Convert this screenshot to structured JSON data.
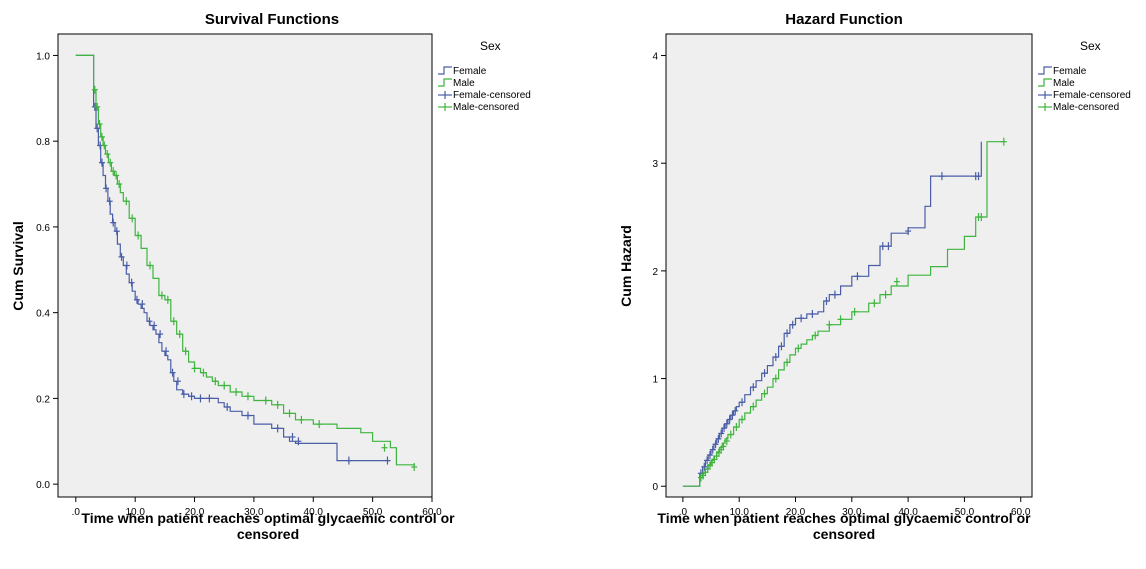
{
  "chart_data": [
    {
      "type": "line",
      "title": "Survival Functions",
      "xlabel": [
        "Time when patient reaches optimal glycaemic control or",
        "censored"
      ],
      "ylabel": "Cum Survival",
      "xlim": [
        -3,
        60
      ],
      "ylim": [
        -0.03,
        1.05
      ],
      "x_ticks": [
        0,
        10,
        20,
        30,
        40,
        50,
        60
      ],
      "x_tick_labels": [
        ".0",
        "10.0",
        "20.0",
        "30.0",
        "40.0",
        "50.0",
        "60.0"
      ],
      "y_ticks": [
        0,
        0.2,
        0.4,
        0.6,
        0.8,
        1.0
      ],
      "y_tick_labels": [
        "0.0",
        "0.2",
        "0.4",
        "0.6",
        "0.8",
        "1.0"
      ],
      "legend": {
        "title": "Sex",
        "placement": "right",
        "entries": [
          {
            "label": "Female",
            "kind": "line",
            "color": "#4a5ea8"
          },
          {
            "label": "Male",
            "kind": "line",
            "color": "#3fb53f"
          },
          {
            "label": "Female-censored",
            "kind": "censor",
            "color": "#4a5ea8"
          },
          {
            "label": "Male-censored",
            "kind": "censor",
            "color": "#3fb53f"
          }
        ]
      },
      "background": "#efefef",
      "series": [
        {
          "name": "Female",
          "color": "#4a5ea8",
          "step": true,
          "x": [
            0,
            3,
            3.4,
            3.8,
            4.2,
            4.6,
            5,
            5.4,
            5.8,
            6.2,
            6.6,
            7,
            7.5,
            8,
            8.5,
            9,
            9.5,
            10,
            10.5,
            11,
            11.5,
            12,
            12.5,
            13,
            13.5,
            14,
            14.5,
            15,
            15.5,
            16,
            16.5,
            17,
            18,
            19,
            20,
            22,
            24,
            25,
            26,
            28,
            30,
            33,
            35,
            36,
            37,
            40,
            44,
            53
          ],
          "y": [
            1.0,
            0.88,
            0.83,
            0.79,
            0.75,
            0.72,
            0.69,
            0.66,
            0.63,
            0.61,
            0.59,
            0.56,
            0.53,
            0.51,
            0.49,
            0.47,
            0.45,
            0.43,
            0.42,
            0.41,
            0.4,
            0.38,
            0.37,
            0.36,
            0.35,
            0.33,
            0.31,
            0.3,
            0.29,
            0.26,
            0.24,
            0.22,
            0.21,
            0.205,
            0.2,
            0.2,
            0.19,
            0.18,
            0.17,
            0.16,
            0.14,
            0.13,
            0.11,
            0.1,
            0.095,
            0.095,
            0.055,
            0.055
          ]
        },
        {
          "name": "Male",
          "color": "#3fb53f",
          "step": true,
          "x": [
            0,
            3,
            3.4,
            3.8,
            4.2,
            4.6,
            5,
            5.5,
            6,
            6.5,
            7,
            7.5,
            8,
            9,
            10,
            11,
            12,
            13,
            14,
            15,
            16,
            17,
            18,
            19,
            20,
            21,
            22,
            23,
            24,
            26,
            28,
            30,
            33,
            35,
            37,
            40,
            44,
            48,
            50,
            53,
            54,
            57
          ],
          "y": [
            1.0,
            0.92,
            0.88,
            0.84,
            0.81,
            0.79,
            0.77,
            0.75,
            0.73,
            0.72,
            0.7,
            0.68,
            0.66,
            0.62,
            0.58,
            0.55,
            0.51,
            0.48,
            0.44,
            0.43,
            0.38,
            0.35,
            0.31,
            0.285,
            0.27,
            0.26,
            0.25,
            0.24,
            0.23,
            0.215,
            0.205,
            0.195,
            0.185,
            0.165,
            0.15,
            0.14,
            0.13,
            0.12,
            0.1,
            0.085,
            0.045,
            0.04
          ]
        }
      ],
      "censored": [
        {
          "name": "Female-censored",
          "color": "#4a5ea8",
          "x": [
            3.2,
            3.6,
            4.1,
            4.4,
            5.1,
            5.7,
            6.3,
            6.9,
            7.7,
            8.6,
            9.4,
            10.3,
            11.2,
            12.4,
            13.2,
            14.2,
            15.2,
            16.3,
            17.2,
            18.2,
            19.5,
            21,
            22.5,
            25.5,
            29,
            34,
            36.5,
            37.5,
            46,
            52.5
          ],
          "y": [
            0.88,
            0.83,
            0.79,
            0.75,
            0.69,
            0.66,
            0.61,
            0.59,
            0.53,
            0.51,
            0.47,
            0.43,
            0.42,
            0.38,
            0.37,
            0.35,
            0.31,
            0.26,
            0.24,
            0.21,
            0.205,
            0.2,
            0.2,
            0.18,
            0.16,
            0.13,
            0.11,
            0.1,
            0.055,
            0.055
          ]
        },
        {
          "name": "Male-censored",
          "color": "#3fb53f",
          "x": [
            3.2,
            3.6,
            4.0,
            4.4,
            4.8,
            5.3,
            5.8,
            6.3,
            6.8,
            7.3,
            8.5,
            9.5,
            10.5,
            12.5,
            14.5,
            15.5,
            16.5,
            17.5,
            18.5,
            20,
            21.5,
            23.5,
            25,
            27,
            29,
            32,
            34,
            36,
            38,
            41,
            52,
            57
          ],
          "y": [
            0.92,
            0.88,
            0.84,
            0.81,
            0.79,
            0.77,
            0.75,
            0.73,
            0.72,
            0.7,
            0.66,
            0.62,
            0.58,
            0.51,
            0.44,
            0.43,
            0.38,
            0.35,
            0.31,
            0.27,
            0.26,
            0.24,
            0.23,
            0.215,
            0.205,
            0.195,
            0.185,
            0.165,
            0.15,
            0.14,
            0.085,
            0.04
          ]
        }
      ]
    },
    {
      "type": "line",
      "title": "Hazard Function",
      "xlabel": [
        "Time when patient reaches optimal glycaemic control or",
        "censored"
      ],
      "ylabel": "Cum Hazard",
      "xlim": [
        -3,
        62
      ],
      "ylim": [
        -0.1,
        4.2
      ],
      "x_ticks": [
        0,
        10,
        20,
        30,
        40,
        50,
        60
      ],
      "x_tick_labels": [
        ".0",
        "10.0",
        "20.0",
        "30.0",
        "40.0",
        "50.0",
        "60.0"
      ],
      "y_ticks": [
        0,
        1,
        2,
        3,
        4
      ],
      "y_tick_labels": [
        "0",
        "1",
        "2",
        "3",
        "4"
      ],
      "legend": {
        "title": "Sex",
        "placement": "right",
        "entries": [
          {
            "label": "Female",
            "kind": "line",
            "color": "#4a5ea8"
          },
          {
            "label": "Male",
            "kind": "line",
            "color": "#3fb53f"
          },
          {
            "label": "Female-censored",
            "kind": "censor",
            "color": "#4a5ea8"
          },
          {
            "label": "Male-censored",
            "kind": "censor",
            "color": "#3fb53f"
          }
        ]
      },
      "background": "#efefef",
      "series": [
        {
          "name": "Female",
          "color": "#4a5ea8",
          "step": true,
          "x": [
            0,
            3,
            3.5,
            4,
            4.5,
            5,
            5.5,
            6,
            6.5,
            7,
            7.5,
            8,
            8.5,
            9,
            9.5,
            10,
            11,
            12,
            13,
            14,
            15,
            16,
            17,
            18,
            19,
            20,
            22,
            24,
            25,
            26,
            28,
            30,
            33,
            35,
            37,
            40,
            43,
            44,
            53
          ],
          "y": [
            0,
            0.12,
            0.18,
            0.24,
            0.29,
            0.34,
            0.39,
            0.44,
            0.49,
            0.54,
            0.58,
            0.62,
            0.66,
            0.7,
            0.74,
            0.78,
            0.85,
            0.92,
            0.98,
            1.05,
            1.12,
            1.2,
            1.3,
            1.42,
            1.5,
            1.56,
            1.6,
            1.62,
            1.72,
            1.78,
            1.86,
            1.95,
            2.05,
            2.23,
            2.35,
            2.4,
            2.6,
            2.88,
            3.2
          ]
        },
        {
          "name": "Male",
          "color": "#3fb53f",
          "step": true,
          "x": [
            0,
            3,
            3.5,
            4,
            4.5,
            5,
            5.5,
            6,
            6.5,
            7,
            7.5,
            8,
            9,
            10,
            11,
            12,
            13,
            14,
            15,
            16,
            17,
            18,
            19,
            20,
            21,
            22,
            23,
            24,
            26,
            28,
            30,
            33,
            35,
            37,
            40,
            44,
            47,
            50,
            52,
            54,
            57
          ],
          "y": [
            0,
            0.08,
            0.12,
            0.16,
            0.2,
            0.24,
            0.28,
            0.32,
            0.36,
            0.4,
            0.44,
            0.48,
            0.55,
            0.62,
            0.68,
            0.74,
            0.8,
            0.86,
            0.92,
            1.0,
            1.08,
            1.15,
            1.22,
            1.28,
            1.32,
            1.36,
            1.4,
            1.44,
            1.5,
            1.55,
            1.62,
            1.7,
            1.78,
            1.86,
            1.96,
            2.04,
            2.2,
            2.32,
            2.5,
            3.2,
            3.2
          ]
        }
      ],
      "censored": [
        {
          "name": "Female-censored",
          "color": "#4a5ea8",
          "x": [
            3.2,
            3.8,
            4.3,
            4.8,
            5.3,
            5.8,
            6.3,
            6.8,
            7.3,
            7.8,
            8.3,
            8.8,
            9.3,
            10.5,
            12.5,
            14.5,
            16.5,
            17.5,
            18.5,
            19.5,
            21,
            23,
            25.5,
            27,
            31,
            35.5,
            36.5,
            40,
            46,
            52,
            52.5
          ],
          "y": [
            0.12,
            0.18,
            0.24,
            0.29,
            0.34,
            0.39,
            0.44,
            0.49,
            0.54,
            0.58,
            0.62,
            0.66,
            0.7,
            0.78,
            0.92,
            1.05,
            1.2,
            1.3,
            1.42,
            1.5,
            1.56,
            1.6,
            1.72,
            1.78,
            1.95,
            2.23,
            2.23,
            2.37,
            2.88,
            2.88,
            2.88
          ]
        },
        {
          "name": "Male-censored",
          "color": "#3fb53f",
          "x": [
            3.2,
            3.6,
            4.0,
            4.4,
            4.8,
            5.2,
            5.6,
            6.0,
            6.4,
            6.8,
            7.2,
            7.8,
            8.5,
            9.5,
            10.5,
            12.5,
            14.5,
            16.5,
            18.5,
            20.5,
            23.5,
            26,
            28,
            30.5,
            34,
            36,
            38,
            52.5,
            53,
            57
          ],
          "y": [
            0.08,
            0.1,
            0.13,
            0.16,
            0.19,
            0.22,
            0.25,
            0.28,
            0.31,
            0.34,
            0.37,
            0.42,
            0.48,
            0.55,
            0.62,
            0.74,
            0.86,
            1.0,
            1.15,
            1.28,
            1.4,
            1.5,
            1.55,
            1.62,
            1.7,
            1.78,
            1.9,
            2.5,
            2.5,
            3.2
          ]
        }
      ]
    }
  ]
}
